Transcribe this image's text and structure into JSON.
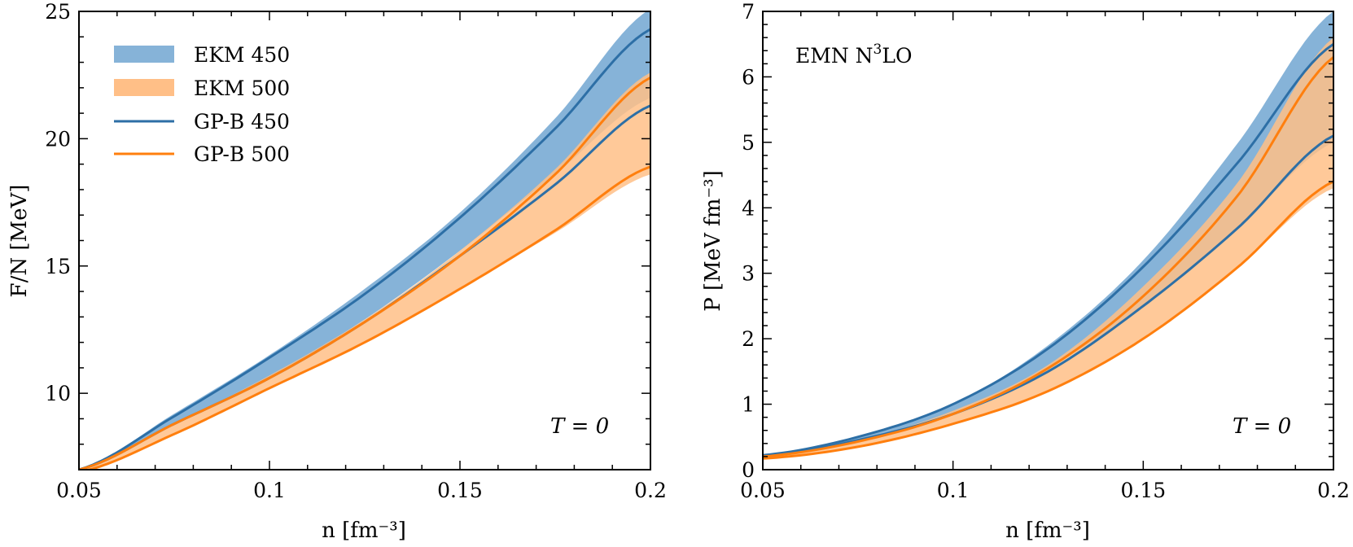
{
  "colors": {
    "blue_line": "#2d6fa6",
    "blue_band": "#86b3d8",
    "orange_line": "#ff7f0e",
    "orange_band": "#ffbf87"
  },
  "chart_data": [
    {
      "type": "area",
      "xlabel": "n [fm⁻³]",
      "ylabel": "F/N [MeV]",
      "xlim": [
        0.05,
        0.2
      ],
      "ylim": [
        7,
        25
      ],
      "xticks": [
        "0.05",
        "0.1",
        "0.15",
        "0.2"
      ],
      "yticks": [
        "10",
        "15",
        "20",
        "25"
      ],
      "ytick_values": [
        10,
        15,
        20,
        25
      ],
      "annotation": "T = 0",
      "legend": [
        "EKM 450",
        "EKM 500",
        "GP-B 450",
        "GP-B 500"
      ],
      "legend_position": "top-left",
      "x": [
        0.05,
        0.075,
        0.1,
        0.125,
        0.15,
        0.175,
        0.2
      ],
      "series": [
        {
          "name": "EKM 450",
          "kind": "band",
          "lower": [
            7.0,
            8.8,
            10.6,
            12.9,
            15.6,
            18.6,
            21.6
          ],
          "upper": [
            7.0,
            9.2,
            11.5,
            14.1,
            17.1,
            20.8,
            25.1
          ]
        },
        {
          "name": "EKM 500",
          "kind": "band",
          "lower": [
            6.9,
            8.4,
            10.2,
            12.0,
            14.1,
            16.3,
            18.6
          ],
          "upper": [
            7.0,
            8.8,
            10.7,
            12.9,
            15.6,
            18.8,
            22.6
          ]
        },
        {
          "name": "GP-B 450",
          "kind": "lines",
          "lower": [
            7.0,
            8.8,
            10.6,
            12.8,
            15.4,
            18.2,
            21.3
          ],
          "upper": [
            7.0,
            9.1,
            11.4,
            13.9,
            16.9,
            20.4,
            24.3
          ]
        },
        {
          "name": "GP-B 500",
          "kind": "lines",
          "lower": [
            6.9,
            8.4,
            10.2,
            12.0,
            14.1,
            16.4,
            18.9
          ],
          "upper": [
            7.0,
            8.8,
            10.6,
            12.8,
            15.4,
            18.6,
            22.4
          ]
        }
      ]
    },
    {
      "type": "area",
      "xlabel": "n [fm⁻³]",
      "ylabel": "P [MeV fm⁻³]",
      "xlim": [
        0.05,
        0.2
      ],
      "ylim": [
        0,
        7
      ],
      "xticks": [
        "0.05",
        "0.1",
        "0.15",
        "0.2"
      ],
      "yticks": [
        "0",
        "1",
        "2",
        "3",
        "4",
        "5",
        "6",
        "7"
      ],
      "ytick_values": [
        0,
        1,
        2,
        3,
        4,
        5,
        6,
        7
      ],
      "annotation": "T = 0",
      "label_text": "EMN N",
      "label_sup": "3",
      "label_suffix": "LO",
      "x": [
        0.05,
        0.075,
        0.1,
        0.125,
        0.15,
        0.175,
        0.2
      ],
      "series": [
        {
          "name": "EKM 450",
          "kind": "band",
          "lower": [
            0.2,
            0.45,
            0.85,
            1.55,
            2.5,
            3.7,
            5.0
          ],
          "upper": [
            0.22,
            0.5,
            1.0,
            1.9,
            3.2,
            5.0,
            7.0
          ]
        },
        {
          "name": "EKM 500",
          "kind": "band",
          "lower": [
            0.17,
            0.35,
            0.7,
            1.2,
            2.0,
            3.1,
            4.3
          ],
          "upper": [
            0.2,
            0.45,
            0.9,
            1.6,
            2.8,
            4.4,
            6.6
          ]
        },
        {
          "name": "GP-B 450",
          "kind": "lines",
          "lower": [
            0.2,
            0.45,
            0.85,
            1.5,
            2.5,
            3.7,
            5.1
          ],
          "upper": [
            0.22,
            0.5,
            1.0,
            1.85,
            3.1,
            4.7,
            6.5
          ]
        },
        {
          "name": "GP-B 500",
          "kind": "lines",
          "lower": [
            0.17,
            0.35,
            0.7,
            1.2,
            2.0,
            3.1,
            4.4
          ],
          "upper": [
            0.2,
            0.43,
            0.85,
            1.55,
            2.65,
            4.2,
            6.3
          ]
        }
      ]
    }
  ]
}
